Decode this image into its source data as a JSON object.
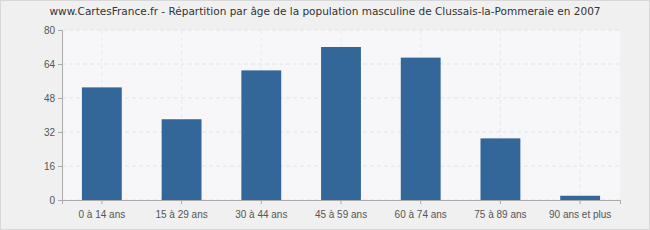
{
  "chart_data": {
    "type": "bar",
    "title": "www.CartesFrance.fr - Répartition par âge de la population masculine de Clussais-la-Pommeraie en 2007",
    "categories": [
      "0 à 14 ans",
      "15 à 29 ans",
      "30 à 44 ans",
      "45 à 59 ans",
      "60 à 74 ans",
      "75 à 89 ans",
      "90 ans et plus"
    ],
    "values": [
      53,
      38,
      61,
      72,
      67,
      29,
      2
    ],
    "color": "#336699",
    "ylim": [
      0,
      80
    ],
    "yticks": [
      0,
      16,
      32,
      48,
      64,
      80
    ],
    "grid": true
  }
}
